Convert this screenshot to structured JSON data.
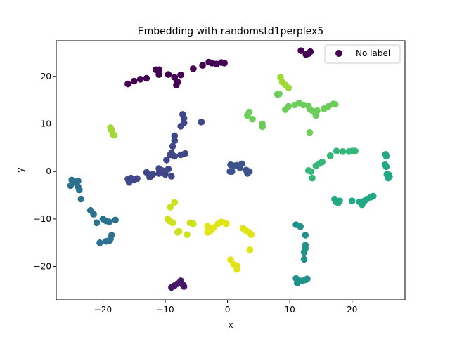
{
  "chart_data": {
    "type": "scatter",
    "title": "Embedding with randomstd1perplex5",
    "xlabel": "x",
    "ylabel": "y",
    "xlim": [
      -27.5,
      28.5
    ],
    "ylim": [
      -27,
      27.5
    ],
    "xticks": [
      -20,
      -10,
      0,
      10,
      20
    ],
    "yticks": [
      -20,
      -10,
      0,
      10,
      20
    ],
    "grid": false,
    "legend": {
      "placement": "top-right",
      "entries": [
        {
          "label": "No label",
          "color": "#440154"
        }
      ]
    },
    "colormap": "viridis",
    "clusters": [
      {
        "color": "#440154",
        "points": [
          [
            -16,
            18.4
          ],
          [
            -15,
            19
          ],
          [
            -14,
            19.4
          ],
          [
            -13,
            19.6
          ],
          [
            -11.5,
            21.4
          ],
          [
            -11,
            21.4
          ],
          [
            -11,
            20.4
          ],
          [
            -9.5,
            20.4
          ],
          [
            -8.5,
            19.8
          ],
          [
            -8.2,
            18.2
          ],
          [
            -8,
            18.8
          ],
          [
            -7.5,
            20.3
          ],
          [
            -5.5,
            21.6
          ],
          [
            -4,
            22.3
          ],
          [
            -3,
            23
          ],
          [
            -2.5,
            22.8
          ],
          [
            -1.8,
            22.6
          ],
          [
            -1,
            22.9
          ],
          [
            -0.5,
            22.8
          ]
        ]
      },
      {
        "color": "#440154",
        "points": [
          [
            11.8,
            25.4
          ],
          [
            12.6,
            24.6
          ],
          [
            13,
            24.8
          ],
          [
            13.3,
            25.2
          ]
        ]
      },
      {
        "color": "#48186a",
        "points": [
          [
            -9,
            -24.4
          ],
          [
            -8.5,
            -24
          ],
          [
            -8,
            -23.6
          ],
          [
            -7.5,
            -23
          ],
          [
            -7.2,
            -23.8
          ],
          [
            -7,
            -24.2
          ]
        ]
      },
      {
        "color": "#3f4788",
        "points": [
          [
            -4.2,
            10.4
          ],
          [
            -7.2,
            12
          ],
          [
            -7,
            11.2
          ],
          [
            -7,
            10.2
          ],
          [
            -7.5,
            9.5
          ],
          [
            -8.5,
            7.5
          ],
          [
            -8.5,
            6.5
          ],
          [
            -8.8,
            5.3
          ],
          [
            -9,
            3.9
          ],
          [
            -9.2,
            3.5
          ],
          [
            -9.8,
            2.4
          ],
          [
            -8.5,
            3.2
          ],
          [
            -7.5,
            3.5
          ],
          [
            -6.8,
            3.8
          ],
          [
            -9.5,
            0.5
          ],
          [
            -10.5,
            0.2
          ],
          [
            -11,
            0.6
          ],
          [
            -12,
            -0.6
          ],
          [
            -12.5,
            -1.2
          ],
          [
            -13,
            -0.2
          ],
          [
            -11,
            -0.4
          ],
          [
            -10,
            -0.6
          ],
          [
            -9,
            -1
          ],
          [
            -14.5,
            -1.5
          ],
          [
            -15,
            -1.8
          ],
          [
            -15.5,
            -1.4
          ],
          [
            -16,
            -1.6
          ],
          [
            -15.8,
            -2.3
          ]
        ]
      },
      {
        "color": "#3b528b",
        "points": [
          [
            0.5,
            1.4
          ],
          [
            1,
            1.2
          ],
          [
            1.5,
            1.3
          ],
          [
            2.3,
            1.6
          ],
          [
            2,
            0.8
          ],
          [
            3,
            0.3
          ],
          [
            3.5,
            0
          ],
          [
            3.2,
            -0.4
          ],
          [
            0.7,
            0
          ],
          [
            0.4,
            0
          ]
        ]
      },
      {
        "color": "#2c728e",
        "points": [
          [
            -25,
            -1.8
          ],
          [
            -24.5,
            -2.3
          ],
          [
            -24,
            -2
          ],
          [
            -24,
            -3.2
          ],
          [
            -23.8,
            -3.9
          ],
          [
            -25.2,
            -3
          ],
          [
            -23.5,
            -5.8
          ],
          [
            -22,
            -8.2
          ],
          [
            -21.5,
            -9
          ],
          [
            -21,
            -10.8
          ],
          [
            -20,
            -10
          ],
          [
            -19.5,
            -10.4
          ],
          [
            -19,
            -10.6
          ],
          [
            -18,
            -10.2
          ],
          [
            -20.5,
            -15
          ],
          [
            -19.5,
            -14.7
          ],
          [
            -19,
            -14.6
          ],
          [
            -18.8,
            -14.2
          ],
          [
            -18.6,
            -13.4
          ]
        ]
      },
      {
        "color": "#21918c",
        "points": [
          [
            11,
            -11.2
          ],
          [
            11.7,
            -11.6
          ],
          [
            12.5,
            -13.4
          ],
          [
            12.5,
            -15.5
          ],
          [
            12.5,
            -16.2
          ],
          [
            12.3,
            -17
          ],
          [
            12.3,
            -18.5
          ],
          [
            11,
            -22.5
          ],
          [
            11.5,
            -23
          ],
          [
            11.2,
            -23.5
          ],
          [
            12,
            -23
          ],
          [
            12.5,
            -22.8
          ],
          [
            12.8,
            -22.6
          ]
        ]
      },
      {
        "color": "#22a884",
        "points": [
          [
            17.2,
            -5.8
          ],
          [
            17.4,
            -6.4
          ],
          [
            17.8,
            -6.6
          ],
          [
            18,
            -6.2
          ],
          [
            20,
            -6.2
          ],
          [
            21.2,
            -6.4
          ],
          [
            21.6,
            -7
          ],
          [
            22,
            -6.2
          ],
          [
            22.4,
            -5.8
          ],
          [
            23,
            -5.4
          ],
          [
            23.4,
            -5.2
          ],
          [
            25.4,
            3.6
          ],
          [
            25.5,
            3.2
          ],
          [
            25.3,
            1.4
          ],
          [
            25.5,
            1
          ],
          [
            25.6,
            -0.6
          ],
          [
            25.9,
            -0.7
          ],
          [
            25.8,
            -1.4
          ],
          [
            26,
            -1.1
          ]
        ]
      },
      {
        "color": "#35b779",
        "points": [
          [
            19.5,
            4.2
          ],
          [
            20,
            4.3
          ],
          [
            20.5,
            4.3
          ],
          [
            18.5,
            4.2
          ],
          [
            17.5,
            4.3
          ],
          [
            16.5,
            3.3
          ],
          [
            15.2,
            2
          ],
          [
            14.8,
            1.7
          ],
          [
            14.2,
            1.2
          ],
          [
            13,
            0.2
          ],
          [
            13.4,
            0
          ],
          [
            13.6,
            -1.4
          ]
        ]
      },
      {
        "color": "#6ccd5a",
        "points": [
          [
            3.2,
            11.8
          ],
          [
            3.5,
            12.5
          ],
          [
            4,
            11
          ],
          [
            5.6,
            9.4
          ],
          [
            5.6,
            10
          ],
          [
            8,
            16.2
          ],
          [
            8.3,
            16.3
          ],
          [
            9.3,
            13
          ],
          [
            9.8,
            13.7
          ],
          [
            10.8,
            14
          ],
          [
            11.5,
            14.4
          ],
          [
            12.2,
            14
          ],
          [
            13,
            13.8
          ],
          [
            13.3,
            13
          ],
          [
            13.8,
            12.6
          ],
          [
            14.2,
            11.8
          ],
          [
            14.4,
            12.8
          ],
          [
            15.5,
            13.2
          ],
          [
            16.2,
            13.7
          ],
          [
            17,
            14.2
          ],
          [
            17.3,
            14.1
          ],
          [
            13.2,
            8.2
          ]
        ]
      },
      {
        "color": "#9fd938",
        "points": [
          [
            8.5,
            19.8
          ],
          [
            8.8,
            18.8
          ],
          [
            9.3,
            18.2
          ],
          [
            9.8,
            17.6
          ],
          [
            -18.8,
            9.2
          ],
          [
            -18.6,
            8.6
          ],
          [
            -18.4,
            7.8
          ],
          [
            -18.2,
            7.6
          ]
        ]
      },
      {
        "color": "#cde11d",
        "points": [
          [
            -9.2,
            -7.5
          ],
          [
            -8.5,
            -6.5
          ],
          [
            -9.6,
            -10
          ],
          [
            -9.2,
            -10.5
          ],
          [
            -8.8,
            -10.8
          ],
          [
            -8,
            -12.8
          ],
          [
            -7.8,
            -12.6
          ],
          [
            -6.5,
            -13.3
          ],
          [
            -6,
            -10.8
          ],
          [
            -5.5,
            -11
          ]
        ]
      },
      {
        "color": "#e3e418",
        "points": [
          [
            -3.2,
            -11.5
          ],
          [
            -3,
            -12.3
          ],
          [
            -2.5,
            -12.1
          ],
          [
            -3.2,
            -12.8
          ],
          [
            -2.8,
            -12.6
          ],
          [
            -2.2,
            -11.8
          ],
          [
            -1.5,
            -11
          ],
          [
            -1,
            -10.6
          ],
          [
            -0.5,
            -10.8
          ],
          [
            -0.2,
            -11
          ],
          [
            2.5,
            -12
          ],
          [
            3,
            -12.5
          ],
          [
            3.5,
            -12.8
          ],
          [
            3.8,
            -13.3
          ],
          [
            3.6,
            -16.5
          ],
          [
            0.5,
            -18.6
          ],
          [
            1,
            -19.6
          ],
          [
            1.5,
            -19.8
          ],
          [
            1.5,
            -20.6
          ]
        ]
      }
    ]
  }
}
